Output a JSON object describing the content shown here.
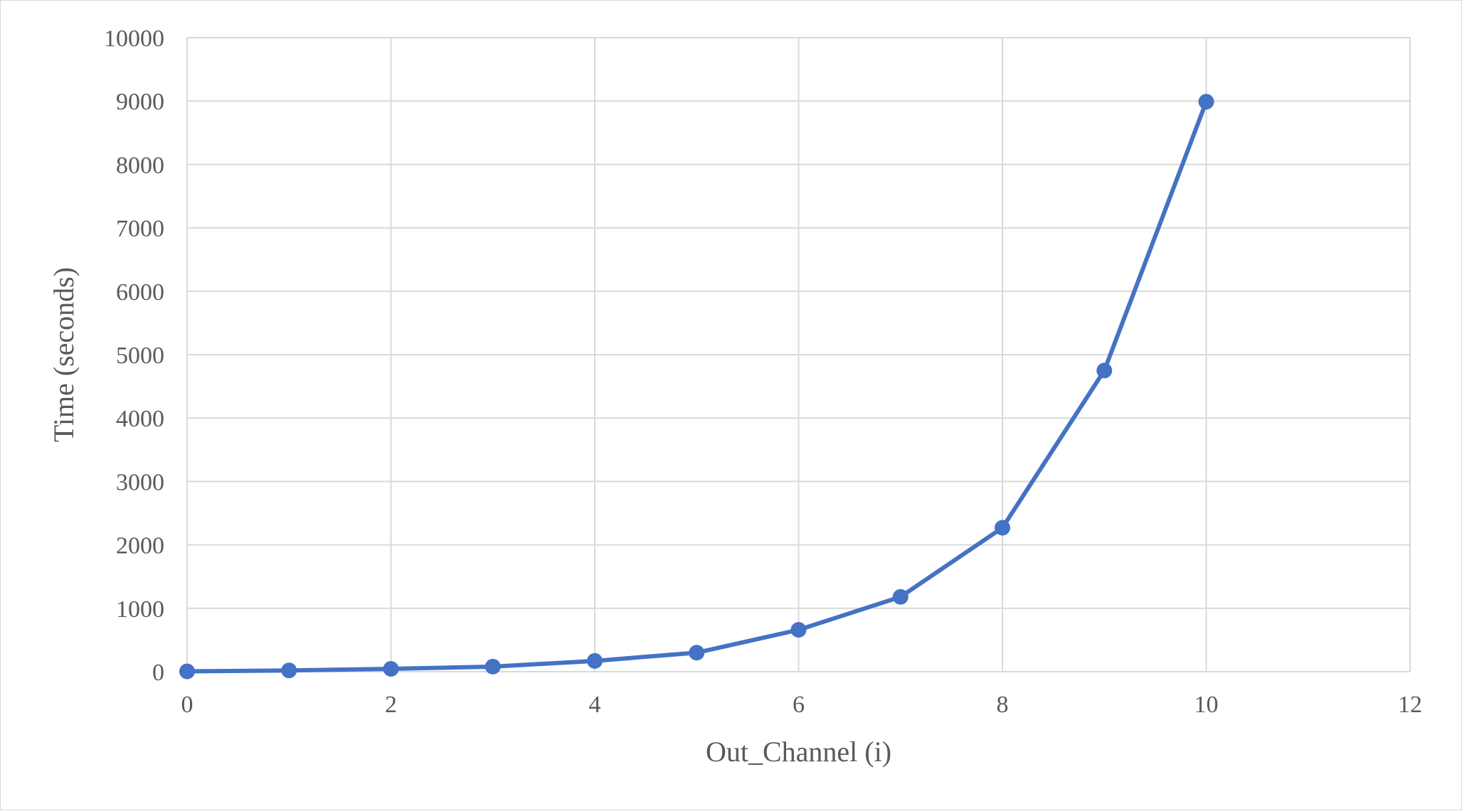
{
  "chart_data": {
    "type": "scatter",
    "title": "",
    "xlabel": "Out_Channel (i)",
    "ylabel": "Time (seconds)",
    "xlim": [
      0,
      12
    ],
    "ylim": [
      0,
      10000
    ],
    "x_ticks": [
      0,
      2,
      4,
      6,
      8,
      10,
      12
    ],
    "y_ticks": [
      0,
      1000,
      2000,
      3000,
      4000,
      5000,
      6000,
      7000,
      8000,
      9000,
      10000
    ],
    "grid": true,
    "legend": "none",
    "series": [
      {
        "x": [
          0,
          1,
          2,
          3,
          4,
          5,
          6,
          7,
          8,
          9,
          10
        ],
        "y": [
          5,
          20,
          45,
          80,
          170,
          300,
          660,
          1180,
          2270,
          4750,
          8990
        ],
        "color": "#4472c4",
        "mode": "lines+markers"
      }
    ],
    "colors": {
      "series": "#4472c4",
      "grid": "#d9d9d9",
      "text": "#595959"
    }
  }
}
